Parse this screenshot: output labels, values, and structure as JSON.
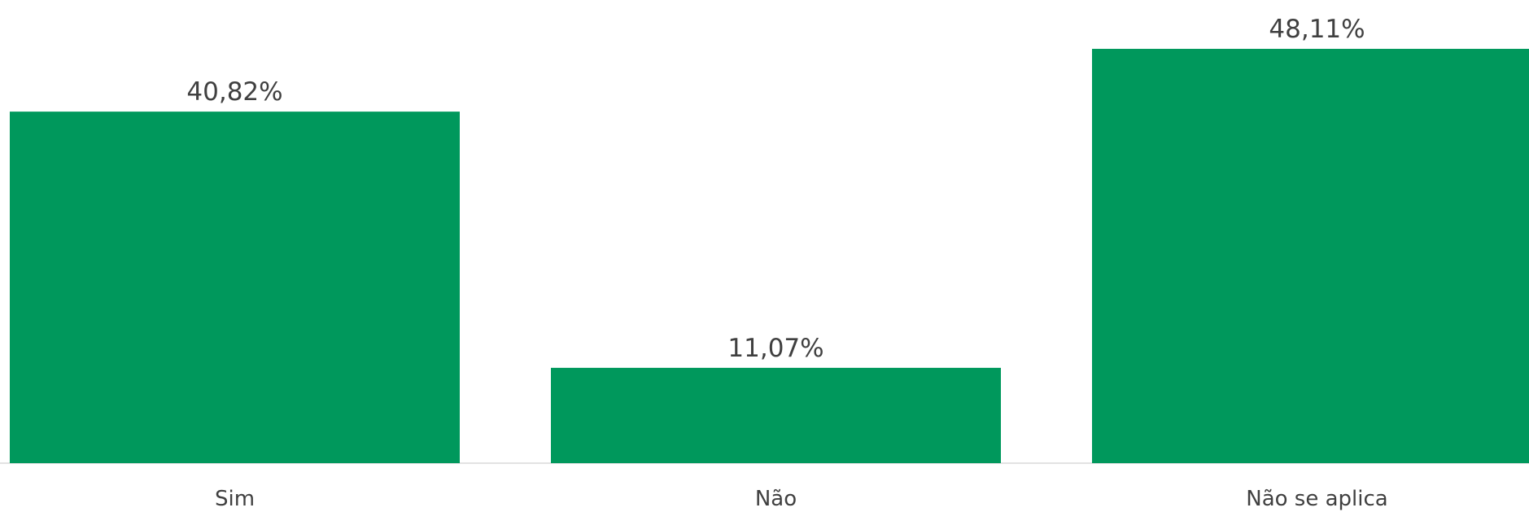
{
  "chart_data": {
    "type": "bar",
    "categories": [
      "Sim",
      "Não",
      "Não se aplica"
    ],
    "values": [
      40.82,
      11.07,
      48.11
    ],
    "value_labels": [
      "40,82%",
      "11,07%",
      "48,11%"
    ],
    "color": "#00985c"
  }
}
